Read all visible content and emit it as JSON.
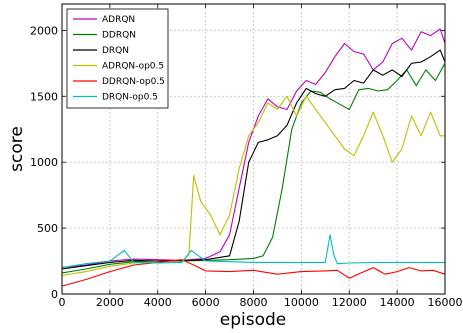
{
  "chart_data": {
    "type": "line",
    "title": "",
    "xlabel": "episode",
    "ylabel": "score",
    "xlim": [
      0,
      16000
    ],
    "ylim": [
      0,
      2200
    ],
    "xticks": [
      0,
      2000,
      4000,
      6000,
      8000,
      10000,
      12000,
      14000,
      16000
    ],
    "yticks": [
      0,
      500,
      1000,
      1500,
      2000
    ],
    "grid": true,
    "legend_position": "top-left",
    "series": [
      {
        "name": "ADRQN",
        "color": "#bf00bf",
        "x": [
          0,
          1000,
          2000,
          3000,
          4000,
          5000,
          6000,
          6600,
          7000,
          7400,
          7800,
          8200,
          8600,
          9000,
          9400,
          9800,
          10200,
          10600,
          11000,
          11400,
          11800,
          12200,
          12600,
          13000,
          13400,
          13800,
          14200,
          14600,
          15000,
          15400,
          15800,
          16000
        ],
        "y": [
          200,
          220,
          250,
          265,
          260,
          255,
          270,
          320,
          450,
          800,
          1150,
          1350,
          1480,
          1420,
          1400,
          1540,
          1620,
          1590,
          1680,
          1800,
          1900,
          1840,
          1820,
          1700,
          1760,
          1900,
          1940,
          1850,
          1990,
          1960,
          2010,
          1900
        ]
      },
      {
        "name": "DDRQN",
        "color": "#008000",
        "x": [
          0,
          1000,
          2000,
          3000,
          4000,
          5000,
          6000,
          7000,
          8000,
          8400,
          8800,
          9200,
          9600,
          10000,
          10400,
          10800,
          11200,
          11600,
          12000,
          12400,
          12800,
          13200,
          13600,
          14000,
          14400,
          14800,
          15200,
          15600,
          16000
        ],
        "y": [
          160,
          190,
          225,
          245,
          250,
          250,
          255,
          260,
          270,
          290,
          430,
          800,
          1250,
          1450,
          1540,
          1530,
          1480,
          1440,
          1400,
          1550,
          1560,
          1540,
          1550,
          1620,
          1700,
          1580,
          1700,
          1620,
          1750
        ]
      },
      {
        "name": "DRQN",
        "color": "#000000",
        "x": [
          0,
          1000,
          2000,
          3000,
          4000,
          5000,
          6000,
          7000,
          7400,
          7800,
          8200,
          8600,
          9000,
          9400,
          9800,
          10200,
          10600,
          11000,
          11400,
          11800,
          12200,
          12600,
          13000,
          13400,
          13800,
          14200,
          14600,
          15000,
          15400,
          15800,
          16000
        ],
        "y": [
          190,
          215,
          240,
          255,
          250,
          255,
          260,
          290,
          550,
          1000,
          1150,
          1170,
          1200,
          1280,
          1450,
          1560,
          1520,
          1500,
          1550,
          1560,
          1620,
          1600,
          1700,
          1660,
          1700,
          1650,
          1750,
          1760,
          1800,
          1850,
          1760
        ]
      },
      {
        "name": "ADRQN-op0.5",
        "color": "#bfbf00",
        "x": [
          0,
          1000,
          2000,
          3000,
          4000,
          5000,
          5300,
          5500,
          5800,
          6200,
          6600,
          7000,
          7400,
          7800,
          8200,
          8600,
          9000,
          9400,
          9800,
          10200,
          10600,
          11000,
          11400,
          11800,
          12200,
          12600,
          13000,
          13400,
          13800,
          14200,
          14600,
          15000,
          15400,
          15800,
          16000
        ],
        "y": [
          140,
          170,
          210,
          235,
          240,
          240,
          300,
          900,
          700,
          600,
          450,
          600,
          950,
          1200,
          1300,
          1450,
          1400,
          1500,
          1350,
          1500,
          1400,
          1300,
          1200,
          1100,
          1050,
          1200,
          1380,
          1200,
          1000,
          1100,
          1350,
          1200,
          1380,
          1200,
          1200
        ]
      },
      {
        "name": "DDRQN-op0.5",
        "color": "#ff0000",
        "x": [
          0,
          1000,
          2000,
          3000,
          4000,
          5000,
          5500,
          6000,
          7000,
          8000,
          9000,
          10000,
          11000,
          11500,
          12000,
          12500,
          13000,
          13500,
          14000,
          14500,
          15000,
          15500,
          16000
        ],
        "y": [
          60,
          110,
          170,
          220,
          240,
          260,
          220,
          175,
          170,
          180,
          150,
          170,
          175,
          180,
          120,
          160,
          200,
          150,
          170,
          200,
          175,
          180,
          150
        ]
      },
      {
        "name": "DRQN-op0.5",
        "color": "#00bfbf",
        "x": [
          0,
          1000,
          2000,
          2600,
          3000,
          4000,
          5000,
          5400,
          6000,
          7000,
          8000,
          9000,
          10000,
          11000,
          11200,
          11350,
          11500,
          12000,
          13000,
          14000,
          15000,
          16000
        ],
        "y": [
          200,
          230,
          250,
          330,
          240,
          235,
          240,
          330,
          250,
          245,
          240,
          240,
          240,
          240,
          450,
          300,
          230,
          235,
          240,
          240,
          240,
          240
        ]
      }
    ]
  }
}
